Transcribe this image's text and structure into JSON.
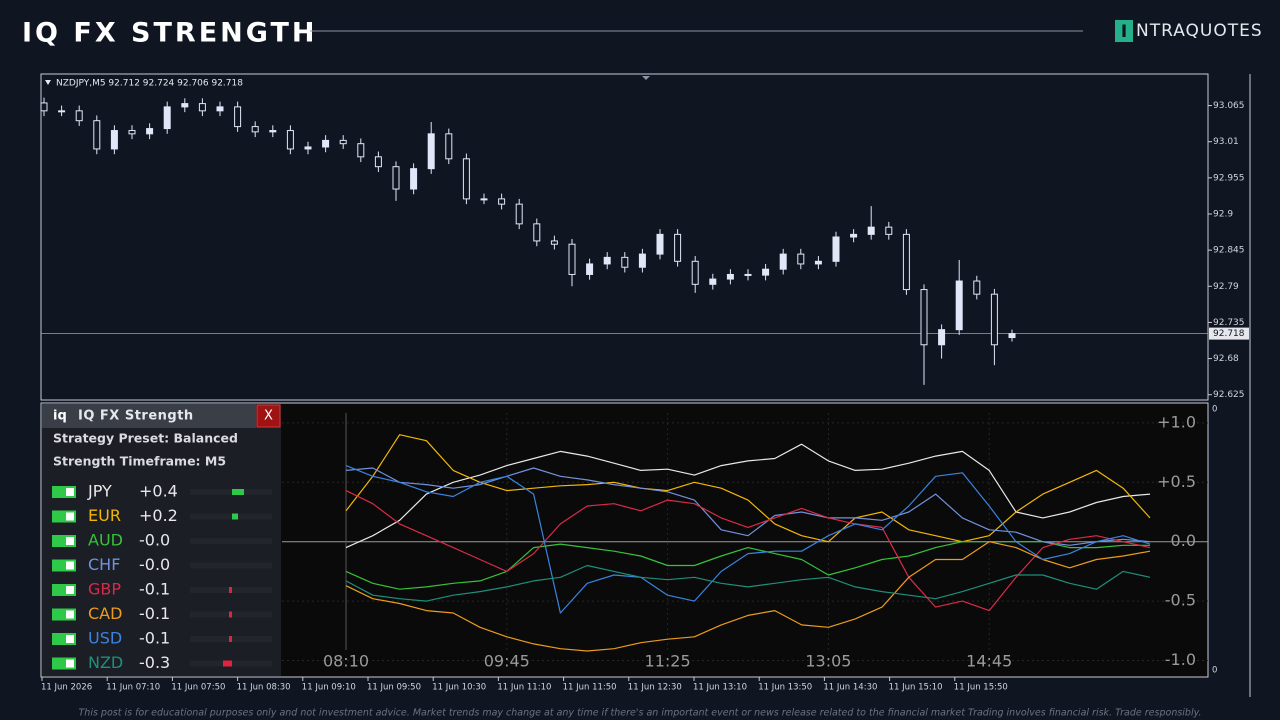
{
  "header": {
    "title": "IQ FX STRENGTH",
    "logo_icon": "I",
    "logo_text": "NTRAQUOTES"
  },
  "footer": {
    "disclaimer": "This post is for educational purposes only and not investment advice. Market trends may change at any time if there's an important event or news release related to the financial market Trading involves financial risk. Trade responsibly."
  },
  "panel": {
    "icon": "iq",
    "title": "IQ FX Strength",
    "close": "X",
    "preset": "Strategy Preset: Balanced",
    "timeframe": "Strength Timeframe: M5",
    "rows": [
      {
        "value": 0.4,
        "value_label": "+0.4"
      },
      {
        "value": 0.2,
        "value_label": "+0.2"
      },
      {
        "value": -0.0,
        "value_label": "-0.0"
      },
      {
        "value": -0.0,
        "value_label": "-0.0"
      },
      {
        "value": -0.1,
        "value_label": "-0.1"
      },
      {
        "value": -0.1,
        "value_label": "-0.1"
      },
      {
        "value": -0.1,
        "value_label": "-0.1"
      },
      {
        "value": -0.3,
        "value_label": "-0.3"
      }
    ]
  },
  "chart_data": [
    {
      "type": "candlestick",
      "title": "NZDJPY,M5  92.712 92.724 92.706 92.718",
      "bull_color": "#e3e6f8",
      "bear_color": "#0f1521",
      "open": [
        93.069,
        93.057,
        93.057,
        93.042,
        92.999,
        93.027,
        93.022,
        93.03,
        93.063,
        93.068,
        93.057,
        93.063,
        93.033,
        93.025,
        93.027,
        92.999,
        93.002,
        93.012,
        93.007,
        92.987,
        92.972,
        92.938,
        92.969,
        93.022,
        92.984,
        92.923,
        92.923,
        92.915,
        92.885,
        92.859,
        92.854,
        92.808,
        92.824,
        92.834,
        92.819,
        92.839,
        92.869,
        92.828,
        92.793,
        92.801,
        92.808,
        92.807,
        92.816,
        92.839,
        92.824,
        92.828,
        92.865,
        92.869,
        92.88,
        92.869,
        92.785,
        92.701,
        92.724,
        92.798,
        92.778,
        92.712
      ],
      "high": [
        93.077,
        93.065,
        93.065,
        93.05,
        93.035,
        93.035,
        93.038,
        93.071,
        93.076,
        93.076,
        93.071,
        93.071,
        93.041,
        93.035,
        93.035,
        93.01,
        93.02,
        93.02,
        93.015,
        92.995,
        92.98,
        92.977,
        93.04,
        93.03,
        92.992,
        92.931,
        92.931,
        92.923,
        92.893,
        92.867,
        92.862,
        92.832,
        92.842,
        92.842,
        92.847,
        92.877,
        92.877,
        92.836,
        92.809,
        92.816,
        92.816,
        92.824,
        92.847,
        92.847,
        92.836,
        92.873,
        92.877,
        92.912,
        92.888,
        92.877,
        92.793,
        92.732,
        92.83,
        92.806,
        92.786,
        92.724
      ],
      "low": [
        93.049,
        93.049,
        93.034,
        92.991,
        92.991,
        93.014,
        93.014,
        93.022,
        93.055,
        93.049,
        93.049,
        93.025,
        93.017,
        93.017,
        92.991,
        92.991,
        92.994,
        92.999,
        92.979,
        92.964,
        92.92,
        92.93,
        92.961,
        92.976,
        92.915,
        92.915,
        92.907,
        92.877,
        92.851,
        92.846,
        92.79,
        92.8,
        92.816,
        92.811,
        92.811,
        92.831,
        92.82,
        92.78,
        92.785,
        92.793,
        92.799,
        92.799,
        92.808,
        92.816,
        92.816,
        92.82,
        92.857,
        92.861,
        92.861,
        92.777,
        92.64,
        92.68,
        92.716,
        92.77,
        92.67,
        92.706
      ],
      "close": [
        93.057,
        93.057,
        93.042,
        92.999,
        93.027,
        93.022,
        93.03,
        93.063,
        93.068,
        93.057,
        93.063,
        93.033,
        93.025,
        93.027,
        92.999,
        93.002,
        93.012,
        93.007,
        92.987,
        92.972,
        92.938,
        92.969,
        93.022,
        92.984,
        92.923,
        92.923,
        92.915,
        92.885,
        92.859,
        92.854,
        92.808,
        92.824,
        92.834,
        92.819,
        92.839,
        92.869,
        92.828,
        92.793,
        92.801,
        92.808,
        92.807,
        92.816,
        92.839,
        92.824,
        92.828,
        92.865,
        92.869,
        92.88,
        92.869,
        92.785,
        92.701,
        92.724,
        92.798,
        92.778,
        92.701,
        92.718
      ],
      "last_price": 92.718,
      "ylim": [
        92.62,
        93.11
      ],
      "yticks": [
        92.625,
        92.68,
        92.735,
        92.79,
        92.845,
        92.9,
        92.955,
        93.01,
        93.065
      ],
      "time_labels": [
        "11 Jun 2026",
        "11 Jun 07:10",
        "11 Jun 07:50",
        "11 Jun 08:30",
        "11 Jun 09:10",
        "11 Jun 09:50",
        "11 Jun 10:30",
        "11 Jun 11:10",
        "11 Jun 11:50",
        "11 Jun 12:30",
        "11 Jun 13:10",
        "11 Jun 13:50",
        "11 Jun 14:30",
        "11 Jun 15:10",
        "11 Jun 15:50"
      ]
    },
    {
      "type": "line",
      "categories": [
        "08:10",
        null,
        null,
        null,
        null,
        null,
        "09:45",
        null,
        null,
        null,
        null,
        null,
        "11:25",
        null,
        null,
        null,
        null,
        null,
        "13:05",
        null,
        null,
        null,
        null,
        null,
        "14:45",
        null,
        null,
        null,
        null,
        null,
        null
      ],
      "ylim": [
        -1.13,
        1.15
      ],
      "yticks": [
        {
          "value": 1,
          "label": "+1.0"
        },
        {
          "value": 0.5,
          "label": "+0.5"
        },
        {
          "value": 0,
          "label": "0.0"
        },
        {
          "value": -0.5,
          "label": "-0.5"
        },
        {
          "value": -1,
          "label": "-1.0"
        }
      ],
      "grid": true,
      "scale_labels": [
        "0",
        "0"
      ],
      "series": [
        {
          "name": "JPY",
          "color": "#e8e8e8",
          "values": [
            -0.05,
            0.05,
            0.18,
            0.4,
            0.5,
            0.56,
            0.64,
            0.7,
            0.76,
            0.72,
            0.66,
            0.6,
            0.61,
            0.56,
            0.64,
            0.68,
            0.7,
            0.82,
            0.68,
            0.6,
            0.61,
            0.66,
            0.72,
            0.76,
            0.6,
            0.25,
            0.2,
            0.25,
            0.33,
            0.38,
            0.4
          ]
        },
        {
          "name": "EUR",
          "color": "#f2b705",
          "values": [
            0.26,
            0.55,
            0.9,
            0.85,
            0.6,
            0.5,
            0.43,
            0.45,
            0.47,
            0.48,
            0.5,
            0.45,
            0.43,
            0.5,
            0.45,
            0.35,
            0.15,
            0.05,
            0.0,
            0.2,
            0.25,
            0.1,
            0.05,
            0.0,
            0.05,
            0.25,
            0.4,
            0.5,
            0.6,
            0.45,
            0.2
          ]
        },
        {
          "name": "AUD",
          "color": "#37c23a",
          "values": [
            -0.25,
            -0.35,
            -0.4,
            -0.38,
            -0.35,
            -0.33,
            -0.25,
            -0.05,
            -0.02,
            -0.05,
            -0.08,
            -0.12,
            -0.2,
            -0.2,
            -0.12,
            -0.05,
            -0.1,
            -0.15,
            -0.28,
            -0.22,
            -0.15,
            -0.12,
            -0.05,
            0.0,
            0.0,
            0.0,
            0.0,
            -0.05,
            -0.05,
            -0.03,
            -0.03
          ]
        },
        {
          "name": "CHF",
          "color": "#7391dc",
          "values": [
            0.6,
            0.62,
            0.5,
            0.48,
            0.45,
            0.48,
            0.55,
            0.62,
            0.55,
            0.52,
            0.48,
            0.45,
            0.42,
            0.35,
            0.1,
            0.05,
            0.22,
            0.25,
            0.2,
            0.2,
            0.18,
            0.25,
            0.4,
            0.2,
            0.1,
            0.08,
            0.0,
            -0.03,
            0.0,
            0.02,
            0.0
          ]
        },
        {
          "name": "GBP",
          "color": "#d92b48",
          "values": [
            0.43,
            0.32,
            0.15,
            0.05,
            -0.05,
            -0.15,
            -0.25,
            -0.1,
            0.15,
            0.3,
            0.32,
            0.26,
            0.35,
            0.32,
            0.2,
            0.12,
            0.2,
            0.28,
            0.2,
            0.15,
            0.12,
            -0.3,
            -0.55,
            -0.5,
            -0.58,
            -0.3,
            -0.05,
            0.02,
            0.05,
            0.0,
            -0.05
          ]
        },
        {
          "name": "CAD",
          "color": "#eb9c1c",
          "values": [
            -0.37,
            -0.48,
            -0.52,
            -0.58,
            -0.6,
            -0.72,
            -0.8,
            -0.86,
            -0.9,
            -0.92,
            -0.9,
            -0.85,
            -0.82,
            -0.8,
            -0.7,
            -0.62,
            -0.58,
            -0.7,
            -0.72,
            -0.65,
            -0.55,
            -0.3,
            -0.15,
            -0.15,
            0.0,
            -0.05,
            -0.15,
            -0.22,
            -0.15,
            -0.12,
            -0.08
          ]
        },
        {
          "name": "USD",
          "color": "#3a84e0",
          "values": [
            0.64,
            0.55,
            0.5,
            0.42,
            0.38,
            0.5,
            0.55,
            0.4,
            -0.6,
            -0.35,
            -0.28,
            -0.3,
            -0.45,
            -0.5,
            -0.25,
            -0.1,
            -0.08,
            -0.08,
            0.05,
            0.15,
            0.1,
            0.3,
            0.55,
            0.58,
            0.3,
            0.0,
            -0.15,
            -0.1,
            0.0,
            0.05,
            -0.02
          ]
        },
        {
          "name": "NZD",
          "color": "#1f8f7c",
          "values": [
            -0.33,
            -0.45,
            -0.48,
            -0.5,
            -0.45,
            -0.42,
            -0.38,
            -0.33,
            -0.3,
            -0.2,
            -0.25,
            -0.3,
            -0.32,
            -0.3,
            -0.35,
            -0.38,
            -0.35,
            -0.32,
            -0.3,
            -0.38,
            -0.42,
            -0.45,
            -0.48,
            -0.42,
            -0.35,
            -0.28,
            -0.28,
            -0.35,
            -0.4,
            -0.25,
            -0.3
          ]
        }
      ]
    }
  ]
}
